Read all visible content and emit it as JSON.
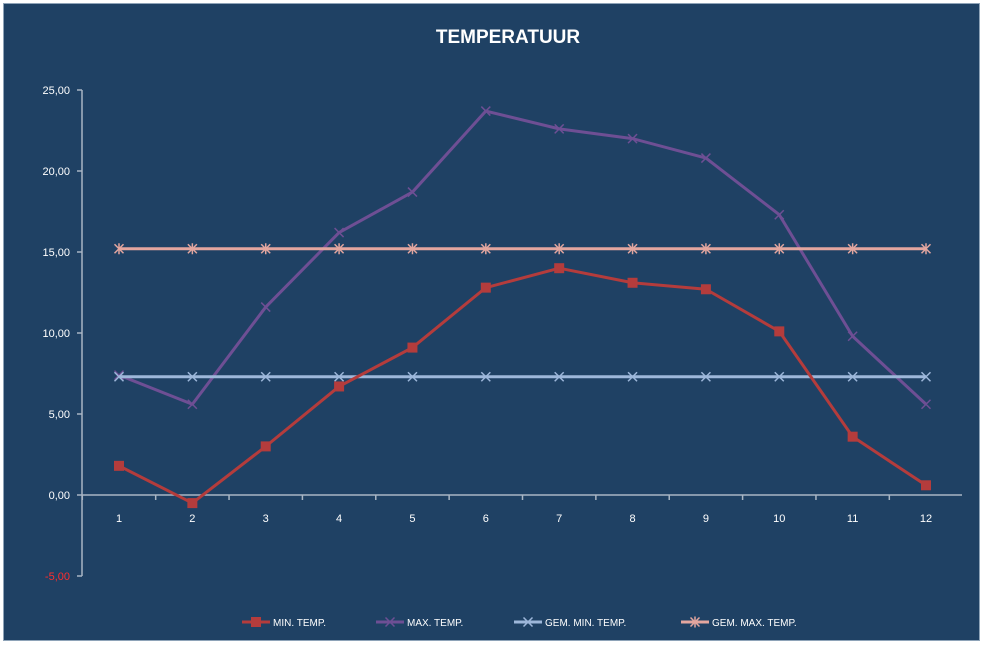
{
  "chart_data": {
    "type": "line",
    "title": "TEMPERATUUR",
    "xlabel": "",
    "ylabel": "",
    "categories": [
      "1",
      "2",
      "3",
      "4",
      "5",
      "6",
      "7",
      "8",
      "9",
      "10",
      "11",
      "12"
    ],
    "ylim": [
      -5,
      25
    ],
    "yticks": [
      "25,00",
      "20,00",
      "15,00",
      "10,00",
      "5,00",
      "0,00",
      "-5,00"
    ],
    "ytick_values": [
      25,
      20,
      15,
      10,
      5,
      0,
      -5
    ],
    "grid": false,
    "legend_position": "bottom",
    "background_color": "#1f4164",
    "series": [
      {
        "name": "MIN. TEMP.",
        "color": "#b43c3c",
        "marker": "square",
        "values": [
          1.8,
          -0.5,
          3.0,
          6.7,
          9.1,
          12.8,
          14.0,
          13.1,
          12.7,
          10.1,
          3.6,
          0.6
        ]
      },
      {
        "name": "MAX. TEMP.",
        "color": "#6e4f94",
        "marker": "x",
        "values": [
          7.4,
          5.6,
          11.6,
          16.2,
          18.7,
          23.7,
          22.6,
          22.0,
          20.8,
          17.3,
          9.8,
          5.6
        ]
      },
      {
        "name": "GEM. MIN. TEMP.",
        "color": "#9db7da",
        "marker": "x",
        "values": [
          7.3,
          7.3,
          7.3,
          7.3,
          7.3,
          7.3,
          7.3,
          7.3,
          7.3,
          7.3,
          7.3,
          7.3
        ]
      },
      {
        "name": "GEM. MAX. TEMP.",
        "color": "#e3a69f",
        "marker": "asterisk",
        "values": [
          15.2,
          15.2,
          15.2,
          15.2,
          15.2,
          15.2,
          15.2,
          15.2,
          15.2,
          15.2,
          15.2,
          15.2
        ]
      }
    ]
  }
}
